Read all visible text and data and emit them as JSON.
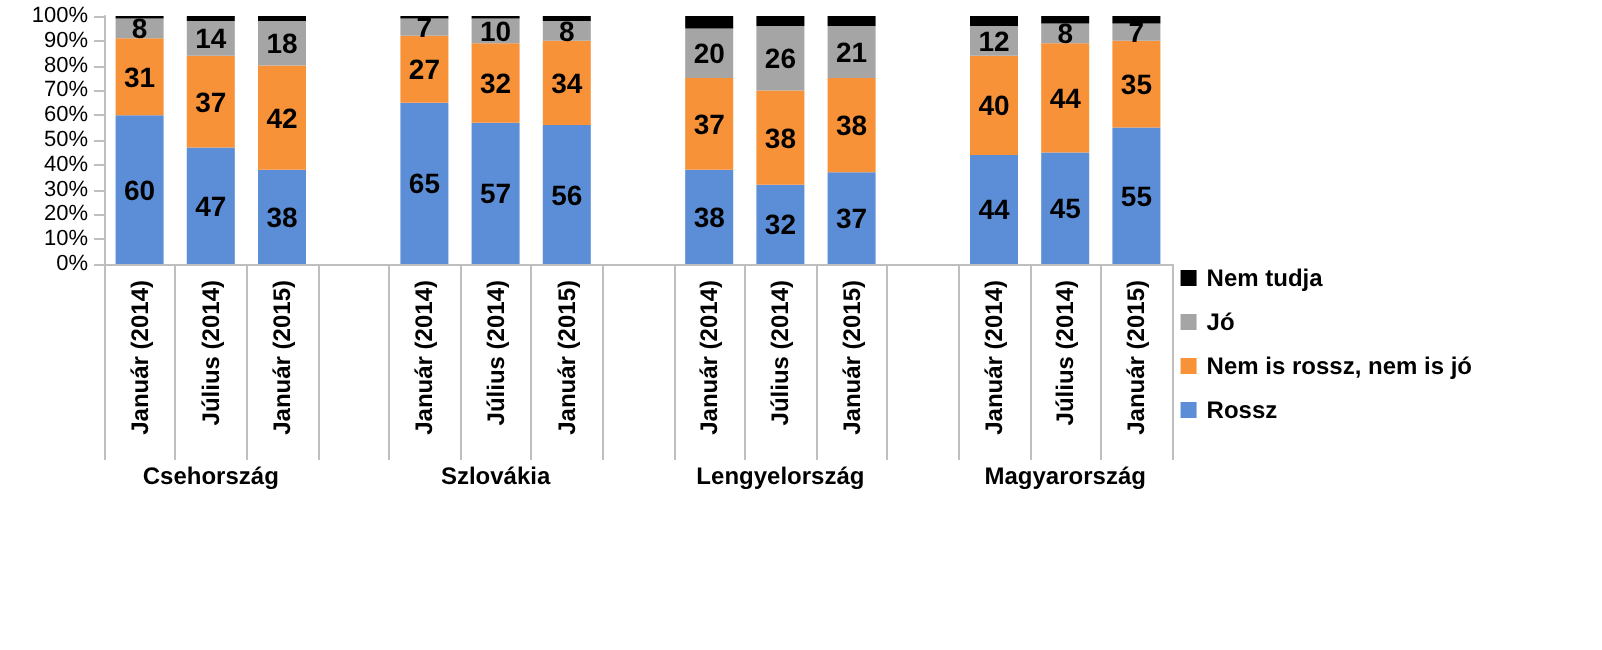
{
  "chart_data": {
    "type": "bar",
    "stacked": true,
    "categories": [
      "Január (2014)",
      "Július (2014)",
      "Január (2015)",
      null,
      "Január (2014)",
      "Július (2014)",
      "Január (2015)",
      null,
      "Január (2014)",
      "Július (2014)",
      "Január (2015)",
      null,
      "Január (2014)",
      "Július (2014)",
      "Január (2015)"
    ],
    "series": [
      {
        "name": "Rossz",
        "color": "#5b8ed6",
        "values": [
          60,
          47,
          38,
          null,
          65,
          57,
          56,
          null,
          38,
          32,
          37,
          null,
          44,
          45,
          55
        ],
        "value_labels": [
          "60",
          "47",
          "38",
          null,
          "65",
          "57",
          "56",
          null,
          "38",
          "32",
          "37",
          null,
          "44",
          "45",
          "55"
        ]
      },
      {
        "name": "Nem is rossz, nem is jó",
        "color": "#f79239",
        "values": [
          31,
          37,
          42,
          null,
          27,
          32,
          34,
          null,
          37,
          38,
          38,
          null,
          40,
          44,
          35
        ],
        "value_labels": [
          "31",
          "37",
          "42",
          null,
          "27",
          "32",
          "34",
          null,
          "37",
          "38",
          "38",
          null,
          "40",
          "44",
          "35"
        ]
      },
      {
        "name": "Jó",
        "color": "#a5a5a5",
        "values": [
          8,
          14,
          18,
          null,
          7,
          10,
          8,
          null,
          20,
          26,
          21,
          null,
          12,
          8,
          7
        ],
        "value_labels": [
          "8",
          "14",
          "18",
          null,
          "7",
          "10",
          "8",
          null,
          "20",
          "26",
          "21",
          null,
          "12",
          "8",
          "7"
        ]
      },
      {
        "name": "Nem tudja",
        "color": "#000000",
        "values": [
          1,
          2,
          2,
          null,
          1,
          1,
          2,
          null,
          5,
          4,
          4,
          null,
          4,
          3,
          3
        ]
      }
    ],
    "annotations": [
      "Csehország",
      "Szlovákia",
      "Lengyelország",
      "Magyarország"
    ],
    "ylim": [
      0,
      100
    ],
    "yticks": [
      {
        "value": 0,
        "label": "0%"
      },
      {
        "value": 10,
        "label": "10%"
      },
      {
        "value": 20,
        "label": "20%"
      },
      {
        "value": 30,
        "label": "30%"
      },
      {
        "value": 40,
        "label": "40%"
      },
      {
        "value": 50,
        "label": "50%"
      },
      {
        "value": 60,
        "label": "60%"
      },
      {
        "value": 70,
        "label": "70%"
      },
      {
        "value": 80,
        "label": "80%"
      },
      {
        "value": 90,
        "label": "90%"
      },
      {
        "value": 100,
        "label": "100%"
      }
    ],
    "grid": false,
    "legend": "right"
  }
}
